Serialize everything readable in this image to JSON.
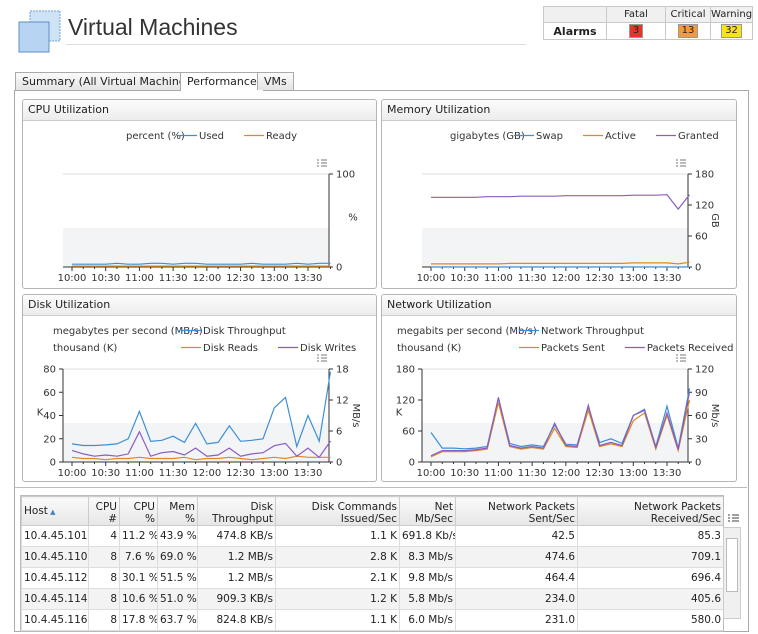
{
  "header": {
    "title": "Virtual Machines"
  },
  "alarms": {
    "row_label": "Alarms",
    "columns": [
      "Fatal",
      "Critical",
      "Warning"
    ],
    "counts": [
      "3",
      "13",
      "32"
    ]
  },
  "tabs": [
    "Summary (All Virtual Machines)",
    "Performance",
    "VMs"
  ],
  "chart_data": [
    {
      "type": "line",
      "title": "CPU Utilization",
      "y2unit": "percent (%)",
      "y2label": "%",
      "x": [
        "10:00",
        null,
        null,
        "10:30",
        null,
        null,
        "11:00",
        null,
        null,
        "11:30",
        null,
        null,
        "12:00",
        null,
        null,
        "12:30",
        null,
        null,
        "13:00",
        null,
        null,
        "13:30",
        null,
        null
      ],
      "y2lim": [
        0,
        100
      ],
      "y2ticks": [
        0,
        100
      ],
      "series": [
        {
          "name": "Used",
          "color": "#3d8fd6",
          "axis": "y2",
          "values": [
            3,
            3,
            3,
            3,
            4,
            3,
            3,
            4,
            4,
            3,
            4,
            4,
            3,
            3,
            3,
            3,
            4,
            3,
            3,
            3,
            4,
            3,
            4,
            4
          ]
        },
        {
          "name": "Ready",
          "color": "#e08a1e",
          "axis": "y2",
          "values": [
            1,
            1,
            1,
            1,
            1,
            1,
            1,
            1,
            1,
            1,
            1,
            1,
            1,
            1,
            1,
            1,
            1,
            1,
            1,
            1,
            1,
            1,
            1,
            1
          ]
        }
      ]
    },
    {
      "type": "line",
      "title": "Memory Utilization",
      "y2unit": "gigabytes (GB)",
      "y2label": "GB",
      "x": [
        "10:00",
        null,
        null,
        "10:30",
        null,
        null,
        "11:00",
        null,
        null,
        "11:30",
        null,
        null,
        "12:00",
        null,
        null,
        "12:30",
        null,
        null,
        "13:00",
        null,
        null,
        "13:30",
        null,
        null
      ],
      "y2lim": [
        0,
        180
      ],
      "y2ticks": [
        0,
        60,
        120,
        180
      ],
      "series": [
        {
          "name": "Swap",
          "color": "#3d8fd6",
          "axis": "y2",
          "values": [
            0,
            0,
            0,
            0,
            0,
            0,
            0,
            0,
            0,
            0,
            0,
            0,
            0,
            0,
            0,
            0,
            0,
            0,
            0,
            0,
            0,
            0,
            0,
            0
          ]
        },
        {
          "name": "Active",
          "color": "#e08a1e",
          "axis": "y2",
          "values": [
            6,
            6,
            6,
            6,
            6,
            6,
            6,
            7,
            7,
            7,
            7,
            7,
            7,
            7,
            7,
            7,
            7,
            7,
            8,
            8,
            8,
            8,
            6,
            9
          ]
        },
        {
          "name": "Granted",
          "color": "#8a5cc0",
          "axis": "y2",
          "values": [
            135,
            135,
            135,
            135,
            135,
            136,
            136,
            136,
            137,
            137,
            137,
            137,
            138,
            138,
            138,
            138,
            138,
            138,
            139,
            139,
            139,
            140,
            112,
            140
          ]
        }
      ]
    },
    {
      "type": "line",
      "title": "Disk Utilization",
      "y2unit": "megabytes per second (MB/s)",
      "yunit": "thousand (K)",
      "ylabel": "K",
      "y2label": "MB/s",
      "x": [
        "10:00",
        null,
        null,
        "10:30",
        null,
        null,
        "11:00",
        null,
        null,
        "11:30",
        null,
        null,
        "12:00",
        null,
        null,
        "12:30",
        null,
        null,
        "13:00",
        null,
        null,
        "13:30",
        null,
        null
      ],
      "ylim": [
        0,
        80
      ],
      "yticks": [
        0,
        20,
        40,
        60,
        80
      ],
      "y2lim": [
        0,
        18
      ],
      "y2ticks": [
        0,
        6,
        12,
        18
      ],
      "series": [
        {
          "name": "Disk Throughput",
          "color": "#3d8fd6",
          "axis": "y2",
          "values": [
            3.5,
            3.2,
            3.2,
            3.3,
            3.5,
            4.5,
            9.8,
            4.0,
            4.2,
            5.0,
            3.8,
            7.5,
            3.5,
            3.8,
            7.0,
            4.0,
            4.2,
            4.5,
            10.5,
            12.5,
            3.0,
            9.0,
            4.0,
            17.5
          ]
        },
        {
          "name": "Disk Reads",
          "color": "#e08a1e",
          "axis": "y",
          "values": [
            4,
            3,
            3,
            2,
            3,
            3,
            4,
            3,
            3,
            3,
            4,
            2,
            3,
            3,
            4,
            3,
            2,
            3,
            4,
            3,
            5,
            4,
            4,
            4
          ]
        },
        {
          "name": "Disk Writes",
          "color": "#8a5cc0",
          "axis": "y",
          "values": [
            10,
            7,
            5,
            6,
            5,
            7,
            26,
            5,
            8,
            9,
            6,
            12,
            5,
            6,
            12,
            5,
            7,
            8,
            14,
            16,
            5,
            12,
            4,
            18
          ]
        }
      ]
    },
    {
      "type": "line",
      "title": "Network Utilization",
      "y2unit": "megabits per second (Mb/s)",
      "yunit": "thousand (K)",
      "ylabel": "K",
      "y2label": "Mb/s",
      "x": [
        "10:00",
        null,
        null,
        "10:30",
        null,
        null,
        "11:00",
        null,
        null,
        "11:30",
        null,
        null,
        "12:00",
        null,
        null,
        "12:30",
        null,
        null,
        "13:00",
        null,
        null,
        "13:30",
        null,
        null
      ],
      "ylim": [
        0,
        180
      ],
      "yticks": [
        0,
        60,
        120,
        180
      ],
      "y2lim": [
        0,
        120
      ],
      "y2ticks": [
        0,
        30,
        60,
        90,
        120
      ],
      "series": [
        {
          "name": "Network Throughput",
          "color": "#3d8fd6",
          "axis": "y2",
          "values": [
            38,
            18,
            18,
            17,
            18,
            20,
            82,
            24,
            20,
            22,
            20,
            48,
            23,
            22,
            70,
            25,
            30,
            24,
            60,
            68,
            20,
            72,
            18,
            95
          ]
        },
        {
          "name": "Packets Sent",
          "color": "#e08a1e",
          "axis": "y",
          "values": [
            10,
            20,
            20,
            20,
            22,
            25,
            115,
            30,
            25,
            28,
            25,
            65,
            30,
            28,
            100,
            30,
            35,
            30,
            80,
            95,
            25,
            90,
            22,
            120
          ]
        },
        {
          "name": "Packets Received",
          "color": "#8a5cc0",
          "axis": "y",
          "values": [
            12,
            22,
            22,
            22,
            24,
            27,
            125,
            32,
            27,
            30,
            27,
            75,
            32,
            30,
            110,
            32,
            38,
            32,
            90,
            100,
            28,
            95,
            24,
            135
          ]
        }
      ]
    }
  ],
  "table": {
    "columns": [
      "Host",
      "CPU #",
      "CPU %",
      "Mem %",
      "Disk Throughput",
      "Disk Commands Issued/Sec",
      "Net Mb/Sec",
      "Network Packets Sent/Sec",
      "Network Packets Received/Sec"
    ],
    "rows": [
      [
        "10.4.45.101",
        "4",
        "11.2 %",
        "43.9 %",
        "474.8 KB/s",
        "1.1 K",
        "691.8 Kb/s",
        "42.5",
        "85.3"
      ],
      [
        "10.4.45.110",
        "8",
        "7.6 %",
        "69.0 %",
        "1.2 MB/s",
        "2.8 K",
        "8.3 Mb/s",
        "474.6",
        "709.1"
      ],
      [
        "10.4.45.112",
        "8",
        "30.1 %",
        "51.5 %",
        "1.2 MB/s",
        "2.1 K",
        "9.8 Mb/s",
        "464.4",
        "696.4"
      ],
      [
        "10.4.45.114",
        "8",
        "10.6 %",
        "51.0 %",
        "909.3 KB/s",
        "1.2 K",
        "5.8 Mb/s",
        "234.0",
        "405.6"
      ],
      [
        "10.4.45.116",
        "8",
        "17.8 %",
        "63.7 %",
        "824.8 KB/s",
        "1.1 K",
        "6.0 Mb/s",
        "231.0",
        "580.0"
      ]
    ]
  }
}
